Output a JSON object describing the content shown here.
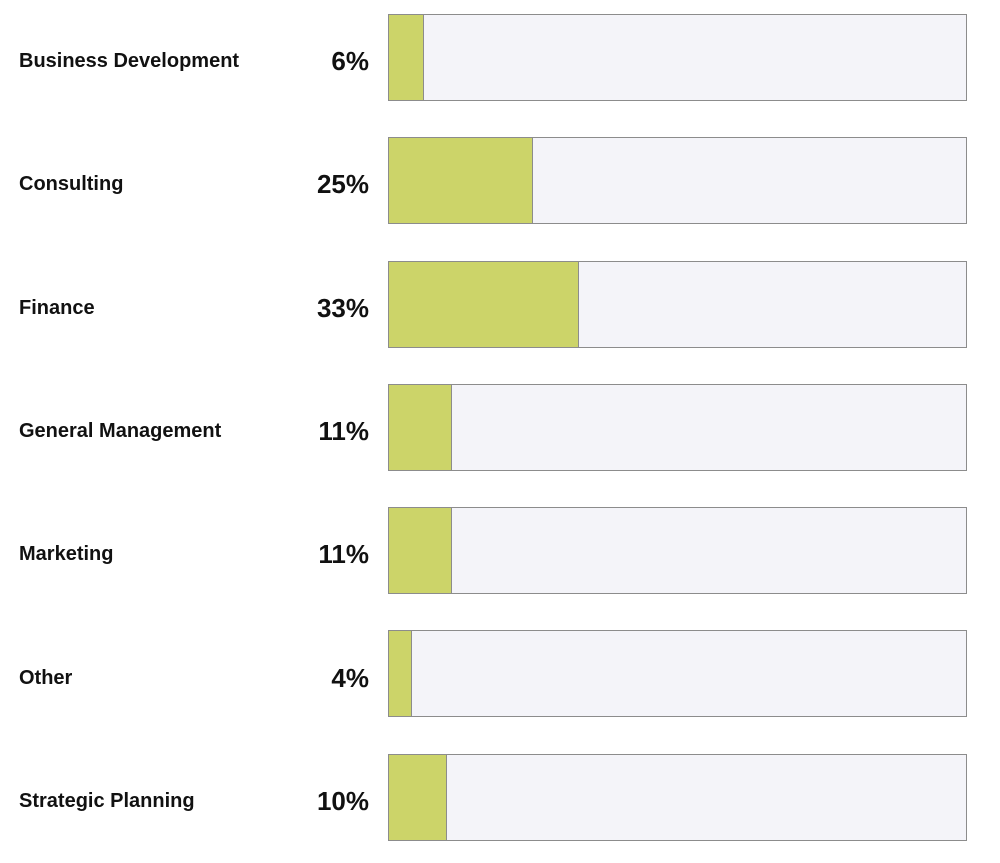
{
  "colors": {
    "bar": "#ccd469",
    "track": "#f4f4f9"
  },
  "chart_data": {
    "type": "bar",
    "orientation": "horizontal",
    "categories": [
      "Business Development",
      "Consulting",
      "Finance",
      "General Management",
      "Marketing",
      "Other",
      "Strategic Planning"
    ],
    "values": [
      6,
      25,
      33,
      11,
      11,
      4,
      10
    ],
    "value_labels": [
      "6%",
      "25%",
      "33%",
      "11%",
      "11%",
      "4%",
      "10%"
    ],
    "xlim": [
      0,
      100
    ],
    "title": "",
    "xlabel": "",
    "ylabel": ""
  }
}
